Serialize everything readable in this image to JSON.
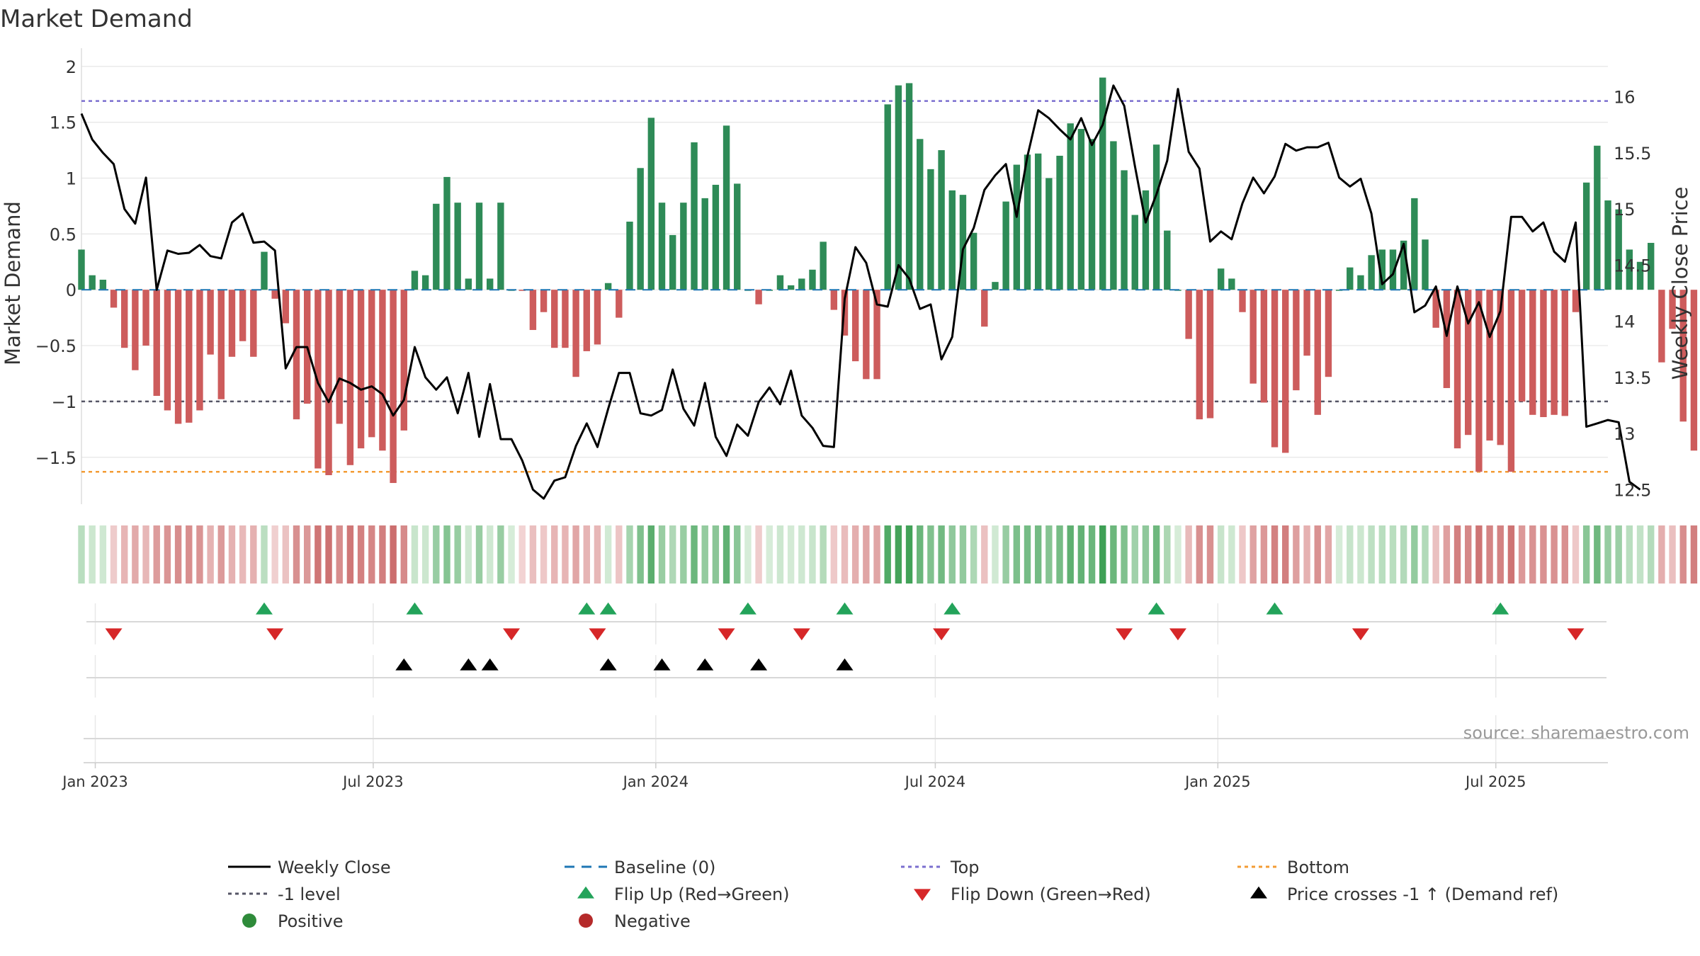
{
  "chart_data": {
    "type": "bar",
    "title": "Market Demand",
    "ylabel": "Market Demand",
    "y2label": "Weekly Close Price",
    "ylim": [
      -1.92,
      2.1
    ],
    "y2lim": [
      12.37,
      16.37
    ],
    "yticks": [
      2,
      1.5,
      1,
      0.5,
      0,
      -0.5,
      -1,
      -1.5
    ],
    "ytick_labels": [
      "2",
      "1.5",
      "1",
      "0.5",
      "0",
      "−0.5",
      "−1",
      "−1.5"
    ],
    "y2ticks": [
      16,
      15.5,
      15,
      14.5,
      14,
      13.5,
      13,
      12.5
    ],
    "y2tick_labels": [
      "16",
      "15.5",
      "15",
      "14.5",
      "14",
      "13.5",
      "13",
      "12.5"
    ],
    "x_start": "2022-12-23",
    "x_end": "2025-09-12",
    "x_ticks": [
      {
        "date": "2023-01-01",
        "label": "Jan 2023"
      },
      {
        "date": "2023-07-01",
        "label": "Jul 2023"
      },
      {
        "date": "2024-01-01",
        "label": "Jan 2024"
      },
      {
        "date": "2024-07-01",
        "label": "Jul 2024"
      },
      {
        "date": "2025-01-01",
        "label": "Jan 2025"
      },
      {
        "date": "2025-07-01",
        "label": "Jul 2025"
      }
    ],
    "first_week": "2022-12-23",
    "demand": [
      0.36,
      0.13,
      0.09,
      -0.16,
      -0.52,
      -0.72,
      -0.5,
      -0.95,
      -1.08,
      -1.2,
      -1.19,
      -1.08,
      -0.58,
      -0.98,
      -0.6,
      -0.46,
      -0.6,
      0.34,
      -0.08,
      -0.3,
      -1.16,
      -1.02,
      -1.6,
      -1.66,
      -1.2,
      -1.57,
      -1.42,
      -1.32,
      -1.44,
      -1.73,
      -1.26,
      0.17,
      0.13,
      0.77,
      1.01,
      0.78,
      0.1,
      0.78,
      0.1,
      0.78,
      0.0,
      -0.01,
      -0.36,
      -0.2,
      -0.52,
      -0.52,
      -0.78,
      -0.55,
      -0.49,
      0.06,
      -0.25,
      0.61,
      1.09,
      1.54,
      0.78,
      0.49,
      0.78,
      1.32,
      0.82,
      0.94,
      1.47,
      0.95,
      0.0,
      -0.13,
      0.0,
      0.13,
      0.04,
      0.1,
      0.18,
      0.43,
      -0.18,
      -0.41,
      -0.64,
      -0.8,
      -0.8,
      1.66,
      1.83,
      1.85,
      1.35,
      1.08,
      1.25,
      0.89,
      0.85,
      0.51,
      -0.33,
      0.07,
      0.79,
      1.12,
      1.21,
      1.22,
      1.0,
      1.2,
      1.49,
      1.44,
      1.35,
      1.9,
      1.33,
      1.07,
      0.67,
      0.89,
      1.3,
      0.53,
      0.0,
      -0.44,
      -1.16,
      -1.15,
      0.19,
      0.1,
      -0.2,
      -0.84,
      -1.01,
      -1.41,
      -1.46,
      -0.9,
      -0.59,
      -1.12,
      -0.78,
      0.0,
      0.2,
      0.13,
      0.31,
      0.36,
      0.36,
      0.44,
      0.82,
      0.45,
      -0.34,
      -0.88,
      -1.42,
      -1.3,
      -1.63,
      -1.35,
      -1.39,
      -1.63,
      -1.0,
      -1.12,
      -1.14,
      -1.12,
      -1.13,
      -0.2,
      0.96,
      1.29,
      0.8,
      0.72,
      0.36,
      0.25,
      0.42,
      -0.65,
      -0.35,
      -1.18,
      -1.44
    ],
    "close": [
      15.85,
      15.62,
      15.5,
      15.4,
      15.0,
      14.87,
      15.28,
      14.28,
      14.63,
      14.6,
      14.61,
      14.68,
      14.58,
      14.56,
      14.88,
      14.96,
      14.7,
      14.71,
      14.63,
      13.58,
      13.77,
      13.77,
      13.45,
      13.28,
      13.49,
      13.45,
      13.39,
      13.42,
      13.35,
      13.16,
      13.3,
      13.77,
      13.5,
      13.39,
      13.5,
      13.18,
      13.54,
      12.97,
      13.44,
      12.95,
      12.95,
      12.76,
      12.5,
      12.42,
      12.58,
      12.61,
      12.89,
      13.09,
      12.88,
      13.22,
      13.54,
      13.54,
      13.18,
      13.16,
      13.21,
      13.57,
      13.22,
      13.07,
      13.45,
      12.97,
      12.8,
      13.08,
      12.98,
      13.28,
      13.41,
      13.26,
      13.56,
      13.16,
      13.05,
      12.89,
      12.88,
      14.2,
      14.66,
      14.52,
      14.15,
      14.13,
      14.5,
      14.38,
      14.11,
      14.15,
      13.66,
      13.86,
      14.64,
      14.83,
      15.17,
      15.3,
      15.4,
      14.93,
      15.47,
      15.88,
      15.81,
      15.71,
      15.62,
      15.81,
      15.57,
      15.75,
      16.1,
      15.92,
      15.38,
      14.88,
      15.13,
      15.43,
      16.07,
      15.51,
      15.36,
      14.71,
      14.8,
      14.73,
      15.05,
      15.28,
      15.14,
      15.29,
      15.58,
      15.52,
      15.55,
      15.55,
      15.59,
      15.28,
      15.2,
      15.27,
      14.96,
      14.33,
      14.42,
      14.69,
      14.08,
      14.14,
      14.31,
      13.87,
      14.31,
      13.98,
      14.17,
      13.86,
      14.09,
      14.93,
      14.93,
      14.8,
      14.88,
      14.62,
      14.53,
      14.88,
      13.06,
      13.09,
      13.12,
      13.1,
      12.57,
      12.5
    ],
    "levels": {
      "top": 1.69,
      "baseline": 0,
      "minus_one": -1,
      "bottom": -1.63
    },
    "flip_up_weeks": [
      17,
      31,
      47,
      49,
      62,
      71,
      81,
      100,
      111,
      132
    ],
    "flip_down_weeks": [
      3,
      18,
      40,
      48,
      60,
      67,
      80,
      97,
      102,
      119,
      139
    ],
    "price_cross_weeks": [
      30,
      36,
      38,
      49,
      54,
      58,
      63,
      71
    ],
    "series": [
      {
        "name": "Weekly Close",
        "color": "#000000",
        "style": "solid-line"
      },
      {
        "name": "Baseline (0)",
        "color": "#1f77b4",
        "style": "dashed-line"
      },
      {
        "name": "Top",
        "color": "#7b6fcf",
        "style": "dotted-line"
      },
      {
        "name": "Bottom",
        "color": "#f39c34",
        "style": "dotted-line"
      },
      {
        "name": "-1 level",
        "color": "#555566",
        "style": "dotted-line"
      },
      {
        "name": "Flip Up (Red→Green)",
        "color": "#23a35a",
        "style": "triangle-up"
      },
      {
        "name": "Flip Down (Green→Red)",
        "color": "#d62728",
        "style": "triangle-down"
      },
      {
        "name": "Price crosses -1 ↑ (Demand ref)",
        "color": "#000000",
        "style": "triangle-up"
      },
      {
        "name": "Positive",
        "color": "#2e8b3a",
        "style": "circle"
      },
      {
        "name": "Negative",
        "color": "#b52a2a",
        "style": "circle"
      }
    ],
    "colors": {
      "positive_bar": "#2e8b57",
      "negative_bar": "#cd5c5c",
      "close_line": "#000000",
      "grid": "#e6e6e6"
    },
    "source": "source: sharemaestro.com"
  }
}
